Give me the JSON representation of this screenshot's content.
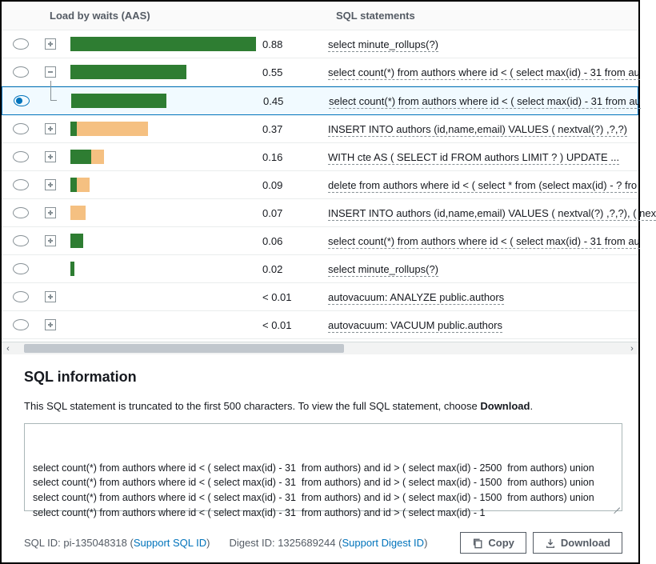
{
  "colors": {
    "green": "#2e7d32",
    "orange": "#f5c081",
    "bar_bg": "#ffffff",
    "selected_bg": "#f1faff",
    "selected_border": "#0073bb",
    "link": "#0073bb"
  },
  "headers": {
    "load": "Load by waits (AAS)",
    "sql": "SQL statements"
  },
  "bar_max": 0.88,
  "rows": [
    {
      "selected": false,
      "expand": "plus",
      "indent": 0,
      "value_text": "0.88",
      "segments": [
        {
          "color": "#2e7d32",
          "frac": 1.0
        }
      ],
      "sql": "select minute_rollups(?)"
    },
    {
      "selected": false,
      "expand": "minus",
      "indent": 0,
      "value_text": "0.55",
      "segments": [
        {
          "color": "#2e7d32",
          "frac": 0.625
        }
      ],
      "sql": "select count(*) from authors where id < ( select max(id) - 31 from au"
    },
    {
      "selected": true,
      "expand": "child",
      "indent": 1,
      "value_text": "0.45",
      "segments": [
        {
          "color": "#2e7d32",
          "frac": 0.511
        }
      ],
      "sql": "select count(*) from authors where id < ( select max(id) - 31 from au"
    },
    {
      "selected": false,
      "expand": "plus",
      "indent": 0,
      "value_text": "0.37",
      "segments": [
        {
          "color": "#2e7d32",
          "frac": 0.034
        },
        {
          "color": "#f5c081",
          "frac": 0.386
        }
      ],
      "sql": "INSERT INTO authors (id,name,email) VALUES ( nextval(?) ,?,?)"
    },
    {
      "selected": false,
      "expand": "plus",
      "indent": 0,
      "value_text": "0.16",
      "segments": [
        {
          "color": "#2e7d32",
          "frac": 0.114
        },
        {
          "color": "#f5c081",
          "frac": 0.068
        }
      ],
      "sql": "WITH cte AS ( SELECT id FROM authors LIMIT ? ) UPDATE ..."
    },
    {
      "selected": false,
      "expand": "plus",
      "indent": 0,
      "value_text": "0.09",
      "segments": [
        {
          "color": "#2e7d32",
          "frac": 0.034
        },
        {
          "color": "#f5c081",
          "frac": 0.068
        }
      ],
      "sql": "delete from authors where id < ( select * from (select max(id) - ? fro"
    },
    {
      "selected": false,
      "expand": "plus",
      "indent": 0,
      "value_text": "0.07",
      "segments": [
        {
          "color": "#f5c081",
          "frac": 0.08
        }
      ],
      "sql": "INSERT INTO authors (id,name,email) VALUES ( nextval(?) ,?,?), ( nex"
    },
    {
      "selected": false,
      "expand": "plus",
      "indent": 0,
      "value_text": "0.06",
      "segments": [
        {
          "color": "#2e7d32",
          "frac": 0.068
        }
      ],
      "sql": "select count(*) from authors where id < ( select max(id) - 31 from au"
    },
    {
      "selected": false,
      "expand": "blank",
      "indent": 0,
      "value_text": "0.02",
      "segments": [
        {
          "color": "#2e7d32",
          "frac": 0.023
        }
      ],
      "sql": "select minute_rollups(?)"
    },
    {
      "selected": false,
      "expand": "plus",
      "indent": 0,
      "value_text": "< 0.01",
      "segments": [],
      "sql": "autovacuum: ANALYZE public.authors"
    },
    {
      "selected": false,
      "expand": "plus",
      "indent": 0,
      "value_text": "< 0.01",
      "segments": [],
      "sql": "autovacuum: VACUUM public.authors"
    }
  ],
  "info": {
    "title": "SQL information",
    "desc_prefix": "This SQL statement is truncated to the first 500 characters. To view the full SQL statement, choose ",
    "desc_bold": "Download",
    "desc_suffix": ".",
    "sql_lines": [
      "select count(*) from authors where id < ( select max(id) - 31  from authors) and id > ( select max(id) - 2500  from authors) union",
      "select count(*) from authors where id < ( select max(id) - 31  from authors) and id > ( select max(id) - 1500  from authors) union",
      "select count(*) from authors where id < ( select max(id) - 31  from authors) and id > ( select max(id) - 1500  from authors) union",
      "select count(*) from authors where id < ( select max(id) - 31  from authors) and id > ( select max(id) - 1"
    ]
  },
  "footer": {
    "sql_id_label": "SQL ID: ",
    "sql_id": "pi-135048318",
    "sql_id_link": "Support SQL ID",
    "digest_label": "Digest ID: ",
    "digest_id": "1325689244",
    "digest_link": "Support Digest ID",
    "copy_label": "Copy",
    "download_label": "Download"
  }
}
